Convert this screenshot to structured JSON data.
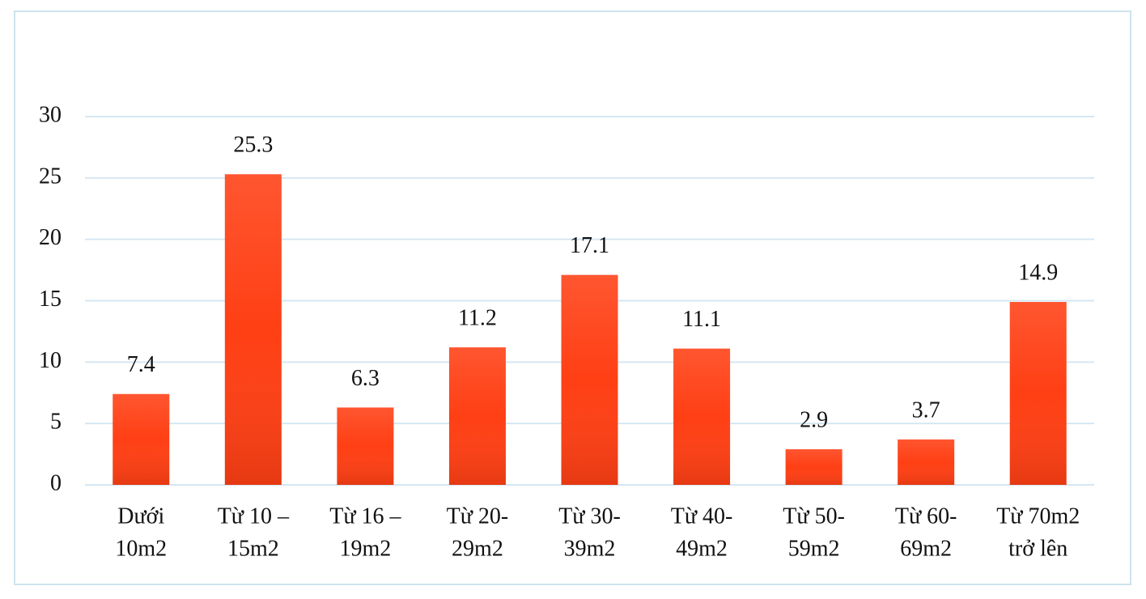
{
  "chart_data": {
    "type": "bar",
    "categories": [
      [
        "Dưới",
        "10m2"
      ],
      [
        "Từ 10 –",
        "15m2"
      ],
      [
        "Từ 16 –",
        "19m2"
      ],
      [
        "Từ 20-",
        "29m2"
      ],
      [
        "Từ 30-",
        "39m2"
      ],
      [
        "Từ 40-",
        "49m2"
      ],
      [
        "Từ 50-",
        "59m2"
      ],
      [
        "Từ 60-",
        "69m2"
      ],
      [
        "Từ 70m2",
        "trở lên"
      ]
    ],
    "values": [
      7.4,
      25.3,
      6.3,
      11.2,
      17.1,
      11.1,
      2.9,
      3.7,
      14.9
    ],
    "color": "#ff3f14",
    "ylim": [
      0,
      30
    ],
    "yticks": [
      0,
      5,
      10,
      15,
      20,
      25,
      30
    ],
    "grid": true
  }
}
